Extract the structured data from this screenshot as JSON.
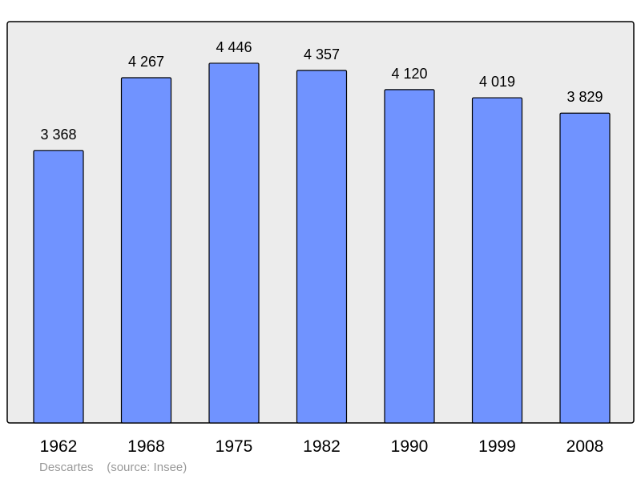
{
  "chart_data": {
    "type": "bar",
    "categories": [
      "1962",
      "1968",
      "1975",
      "1982",
      "1990",
      "1999",
      "2008"
    ],
    "values": [
      3368,
      4267,
      4446,
      4357,
      4120,
      4019,
      3829
    ],
    "value_labels": [
      "3 368",
      "4 267",
      "4 446",
      "4 357",
      "4 120",
      "4 019",
      "3 829"
    ],
    "ylim": [
      0,
      4960
    ],
    "grid": false,
    "colors": {
      "bar": "#7093ff",
      "plot_background": "#ececec",
      "frame": "#000000"
    }
  },
  "caption": {
    "place": "Descartes",
    "source": "(source: Insee)"
  }
}
